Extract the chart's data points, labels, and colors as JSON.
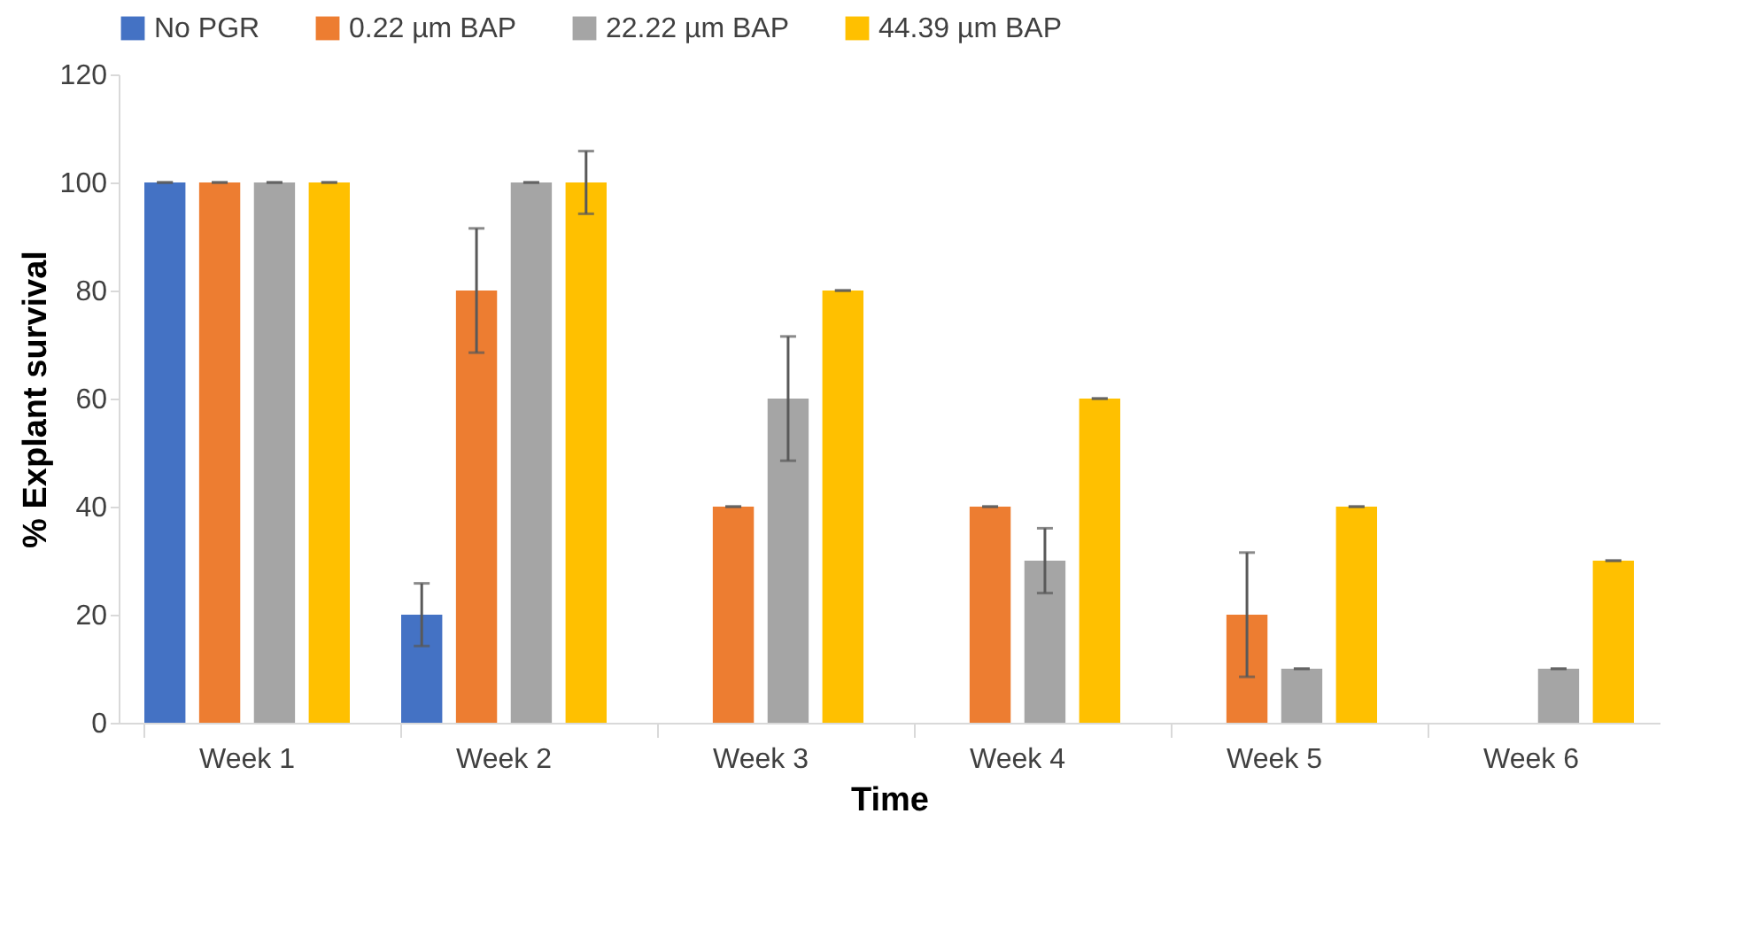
{
  "chart_data": {
    "type": "bar",
    "xlabel": "Time",
    "ylabel": "% Explant survival",
    "categories": [
      "Week 1",
      "Week 2",
      "Week 3",
      "Week 4",
      "Week 5",
      "Week 6"
    ],
    "series": [
      {
        "name": "No PGR",
        "color": "#4472c4",
        "values": [
          100,
          20,
          0,
          0,
          0,
          0
        ],
        "errors": [
          0,
          5.8,
          null,
          null,
          null,
          null
        ]
      },
      {
        "name": "0.22 µm BAP",
        "color": "#ed7d31",
        "values": [
          100,
          80,
          40,
          40,
          20,
          0
        ],
        "errors": [
          0,
          11.5,
          0,
          0,
          11.5,
          null
        ]
      },
      {
        "name": "22.22 µm BAP",
        "color": "#a5a5a5",
        "values": [
          100,
          100,
          60,
          30,
          10,
          10
        ],
        "errors": [
          0,
          0,
          11.5,
          6,
          0,
          0
        ]
      },
      {
        "name": "44.39 µm BAP",
        "color": "#ffc000",
        "values": [
          100,
          100,
          80,
          60,
          40,
          30
        ],
        "errors": [
          0,
          5.8,
          0,
          0,
          0,
          0
        ]
      }
    ],
    "ylim": [
      0,
      120
    ],
    "yticks": [
      0,
      20,
      40,
      60,
      80,
      100,
      120
    ],
    "grid": false,
    "legend": "top"
  }
}
